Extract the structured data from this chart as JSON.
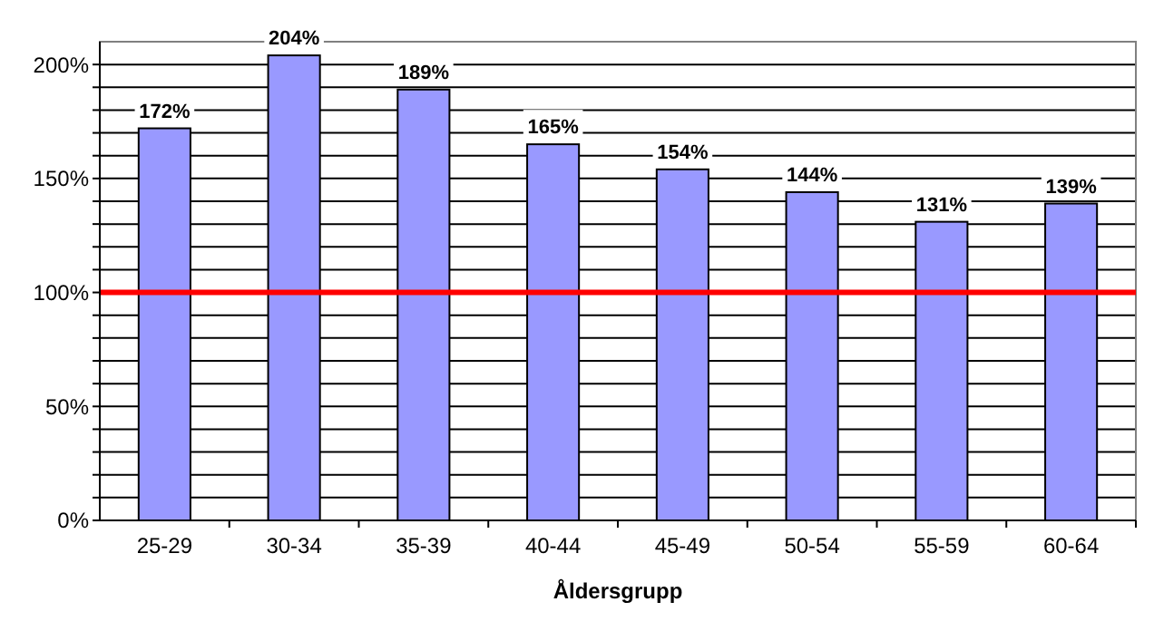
{
  "chart_data": {
    "type": "bar",
    "xlabel": "Åldersgrupp",
    "categories": [
      "25-29",
      "30-34",
      "35-39",
      "40-44",
      "45-49",
      "50-54",
      "55-59",
      "60-64"
    ],
    "values": [
      172,
      204,
      189,
      165,
      154,
      144,
      131,
      139
    ],
    "value_labels": [
      "172%",
      "204%",
      "189%",
      "165%",
      "154%",
      "144%",
      "131%",
      "139%"
    ],
    "color": "#9999ff",
    "ylim": [
      0,
      210
    ],
    "yticks": [
      {
        "value": 0,
        "label": "0%"
      },
      {
        "value": 10,
        "label": null
      },
      {
        "value": 20,
        "label": null
      },
      {
        "value": 30,
        "label": null
      },
      {
        "value": 40,
        "label": null
      },
      {
        "value": 50,
        "label": "50%"
      },
      {
        "value": 60,
        "label": null
      },
      {
        "value": 70,
        "label": null
      },
      {
        "value": 80,
        "label": null
      },
      {
        "value": 90,
        "label": null
      },
      {
        "value": 100,
        "label": "100%"
      },
      {
        "value": 110,
        "label": null
      },
      {
        "value": 120,
        "label": null
      },
      {
        "value": 130,
        "label": null
      },
      {
        "value": 140,
        "label": null
      },
      {
        "value": 150,
        "label": "150%"
      },
      {
        "value": 160,
        "label": null
      },
      {
        "value": 170,
        "label": null
      },
      {
        "value": 180,
        "label": null
      },
      {
        "value": 190,
        "label": null
      },
      {
        "value": 200,
        "label": "200%"
      }
    ],
    "grid": "y",
    "ref_lines": [
      {
        "axis": "y",
        "value": 100,
        "color": "#ff0000"
      }
    ]
  }
}
